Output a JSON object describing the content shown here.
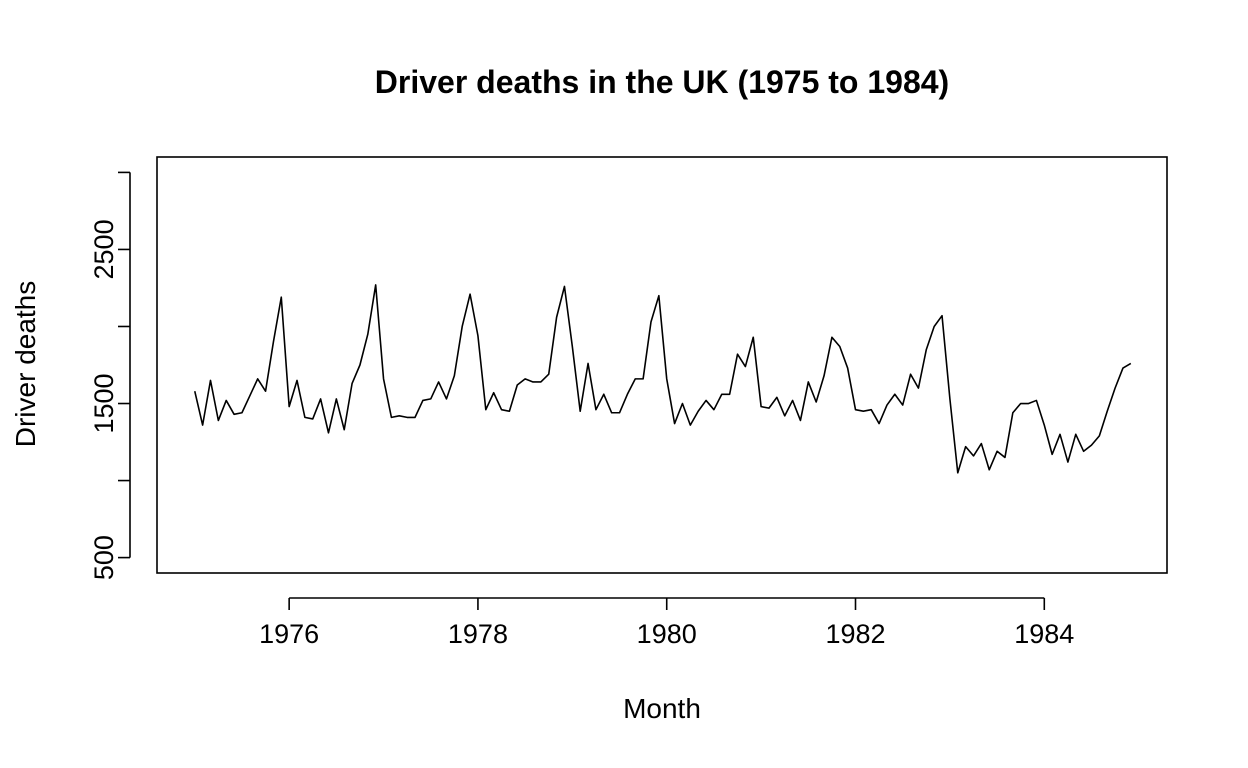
{
  "chart_data": {
    "type": "line",
    "title": "Driver deaths in the UK (1975 to 1984)",
    "xlabel": "Month",
    "ylabel": "Driver deaths",
    "xlim": [
      1974.6,
      1985.3
    ],
    "ylim": [
      400,
      3100
    ],
    "x_ticks": [
      1976,
      1978,
      1980,
      1982,
      1984
    ],
    "x_tick_labels": [
      "1976",
      "1978",
      "1980",
      "1982",
      "1984"
    ],
    "y_ticks": [
      500,
      1500,
      2500
    ],
    "y_tick_labels": [
      "500",
      "1500",
      "2500"
    ],
    "y_minor_ticks": [
      500,
      1000,
      1500,
      2000,
      2500,
      3000
    ],
    "grid": false,
    "series": [
      {
        "x_start": 1975.0,
        "x_step": 0.0833333333,
        "values": [
          1580,
          1360,
          1650,
          1390,
          1520,
          1430,
          1440,
          1550,
          1660,
          1580,
          1900,
          2190,
          1480,
          1650,
          1410,
          1400,
          1530,
          1310,
          1530,
          1330,
          1630,
          1750,
          1950,
          2270,
          1660,
          1410,
          1420,
          1410,
          1410,
          1520,
          1530,
          1640,
          1530,
          1680,
          2000,
          2210,
          1940,
          1460,
          1570,
          1460,
          1450,
          1620,
          1660,
          1640,
          1640,
          1690,
          2060,
          2260,
          1870,
          1450,
          1760,
          1460,
          1560,
          1440,
          1440,
          1560,
          1660,
          1660,
          2030,
          2200,
          1660,
          1370,
          1500,
          1360,
          1450,
          1520,
          1460,
          1560,
          1560,
          1820,
          1740,
          1930,
          1480,
          1470,
          1540,
          1420,
          1520,
          1390,
          1640,
          1510,
          1680,
          1930,
          1870,
          1730,
          1460,
          1450,
          1460,
          1370,
          1490,
          1560,
          1490,
          1690,
          1600,
          1850,
          2000,
          2070,
          1530,
          1050,
          1220,
          1160,
          1240,
          1070,
          1190,
          1150,
          1440,
          1500,
          1500,
          1520,
          1360,
          1170,
          1300,
          1120,
          1300,
          1190,
          1230,
          1290,
          1450,
          1600,
          1730,
          1760
        ]
      }
    ]
  }
}
